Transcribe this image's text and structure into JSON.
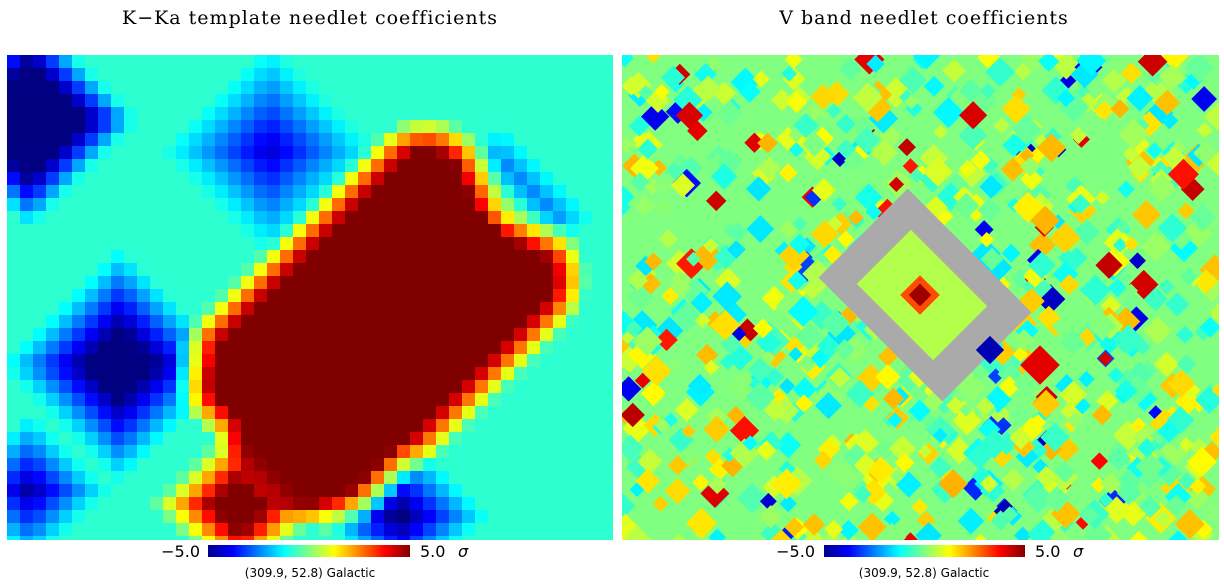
{
  "panels": [
    {
      "title": "K−Ka template needlet coefficients",
      "colorbar": {
        "min": {
          "value": -5,
          "label": "−5.0"
        },
        "max": {
          "value": 5,
          "label": "5.0"
        },
        "unit": "σ"
      },
      "coordinates": "(309.9, 52.8) Galactic"
    },
    {
      "title": "V band needlet coefficients",
      "colorbar": {
        "min": {
          "value": -5,
          "label": "−5.0"
        },
        "max": {
          "value": 5,
          "label": "5.0"
        },
        "unit": "σ"
      },
      "coordinates": "(309.9, 52.8) Galactic"
    }
  ]
}
